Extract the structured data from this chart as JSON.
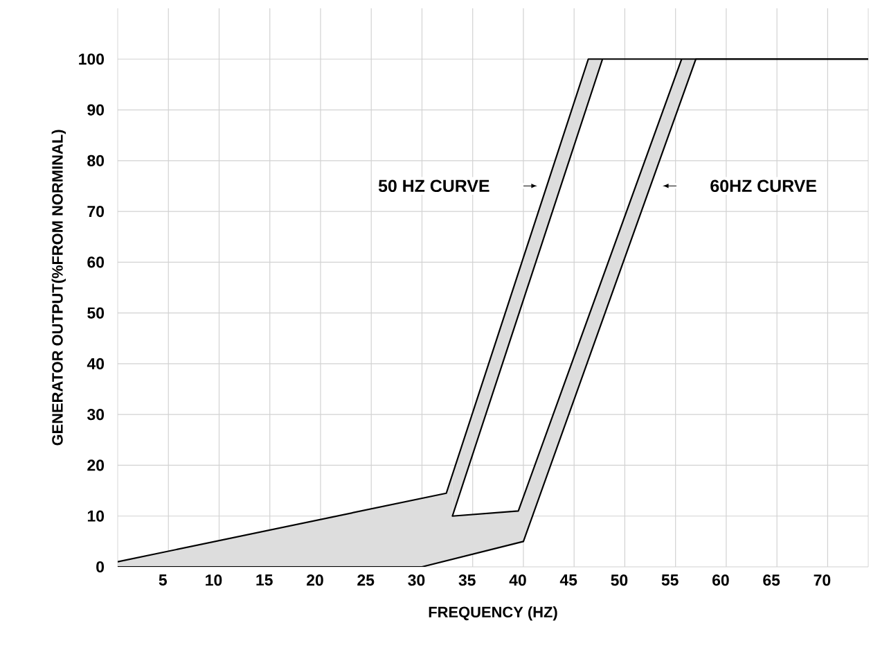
{
  "chart_data": {
    "type": "line",
    "xlabel": "FREQUENCY (HZ)",
    "ylabel": "GENERATOR OUTPUT(%FROM NORMINAL)",
    "xlim": [
      0,
      74
    ],
    "ylim": [
      0,
      110
    ],
    "xticks": [
      5,
      10,
      15,
      20,
      25,
      30,
      35,
      40,
      45,
      50,
      55,
      60,
      65,
      70
    ],
    "yticks": [
      0,
      10,
      20,
      30,
      40,
      50,
      60,
      70,
      80,
      90,
      100
    ],
    "grid": true,
    "marker": "none",
    "line_style": "solid",
    "series": [
      {
        "color": "#000000",
        "x": [
          0,
          32.4,
          46.4,
          74
        ],
        "values": [
          1,
          14.5,
          100,
          100
        ]
      },
      {
        "color": "#000000",
        "x": [
          47.8,
          33,
          39.5,
          55.6
        ],
        "values": [
          100,
          10,
          11,
          100
        ]
      },
      {
        "color": "#000000",
        "x": [
          0,
          30,
          40,
          57,
          74
        ],
        "values": [
          0,
          0,
          5,
          100,
          100
        ]
      },
      {
        "color": "#dddddd",
        "x": [
          0,
          30,
          32.4,
          33,
          33,
          39.5,
          40,
          55.6,
          57
        ],
        "values": [
          null,
          null,
          null,
          null,
          null,
          null,
          null,
          null,
          null
        ],
        "lower": [
          0,
          0,
          1.2,
          1.5,
          1.5,
          4.8,
          5,
          92.2,
          100
        ],
        "upper": [
          1,
          13.5,
          14.5,
          18.2,
          10,
          11,
          13.8,
          100,
          100
        ]
      },
      {
        "color": "#dddddd",
        "x": [
          33,
          46.4,
          47.8
        ],
        "values": [
          null,
          null,
          null
        ],
        "lower": [
          10,
          91.5,
          100
        ],
        "upper": [
          18.2,
          100,
          100
        ]
      }
    ],
    "annotations": [
      "50 HZ CURVE",
      "60HZ CURVE"
    ]
  }
}
